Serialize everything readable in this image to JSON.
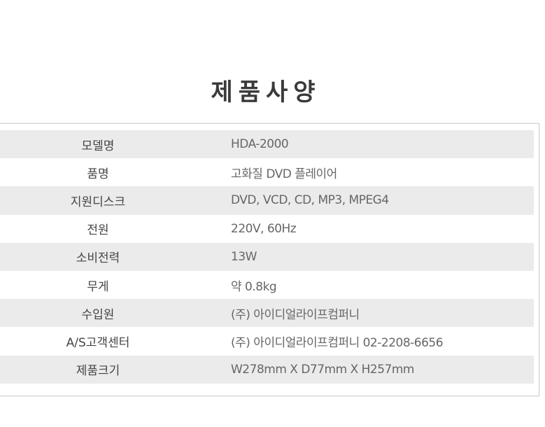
{
  "title": "제품사양",
  "specs": [
    {
      "label": "모델명",
      "value": "HDA-2000"
    },
    {
      "label": "품명",
      "value": "고화질 DVD 플레이어"
    },
    {
      "label": "지원디스크",
      "value": "DVD, VCD, CD, MP3, MPEG4"
    },
    {
      "label": "전원",
      "value": "220V, 60Hz"
    },
    {
      "label": "소비전력",
      "value": "13W"
    },
    {
      "label": "무게",
      "value": "약 0.8kg"
    },
    {
      "label": "수입원",
      "value": "(주) 아이디얼라이프컴퍼니"
    },
    {
      "label": "A/S고객센터",
      "value": "(주) 아이디얼라이프컴퍼니 02-2208-6656"
    },
    {
      "label": "제품크기",
      "value": "W278mm X D77mm X H257mm"
    }
  ]
}
